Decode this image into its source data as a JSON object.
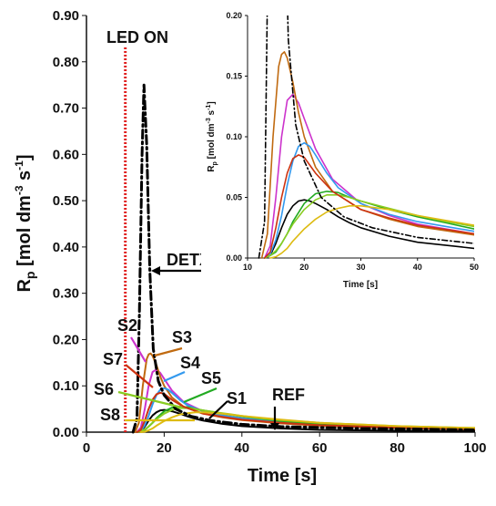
{
  "chart_data": [
    {
      "type": "line",
      "xlabel": "Time [s]",
      "ylabel": "R",
      "ylabel_sub": "p",
      "ylabel_units": "[mol dm",
      "ylabel_exp1": "-3",
      "ylabel_s": " s",
      "ylabel_exp2": "-1",
      "ylabel_close": "]",
      "xlim": [
        0,
        100
      ],
      "ylim": [
        0,
        0.9
      ],
      "xticks": [
        "0",
        "20",
        "40",
        "60",
        "80",
        "100"
      ],
      "yticks": [
        "0.00",
        "0.10",
        "0.20",
        "0.30",
        "0.40",
        "0.50",
        "0.60",
        "0.70",
        "0.80",
        "0.90"
      ],
      "led_label": "LED ON",
      "led_time": 10,
      "annotations": [
        "DETX",
        "S1",
        "S2",
        "S3",
        "S4",
        "S5",
        "S6",
        "S7",
        "S8",
        "REF"
      ],
      "series": [
        {
          "name": "DETX",
          "style": "dashdot",
          "color": "#000000",
          "x": [
            12,
            13,
            13.6,
            14.3,
            14.8,
            15.5,
            16.3,
            17.2,
            18.5,
            20,
            23,
            27,
            32,
            40,
            50,
            70,
            100
          ],
          "y": [
            0,
            0.03,
            0.25,
            0.6,
            0.75,
            0.62,
            0.35,
            0.18,
            0.11,
            0.08,
            0.05,
            0.034,
            0.025,
            0.017,
            0.012,
            0.008,
            0.005
          ]
        },
        {
          "name": "S1",
          "color": "#000000",
          "x": [
            13,
            14,
            15,
            16,
            17,
            18,
            19,
            20,
            21,
            22,
            24,
            26,
            28,
            30,
            35,
            40,
            50,
            60,
            80,
            100
          ],
          "y": [
            0,
            0.002,
            0.012,
            0.025,
            0.036,
            0.043,
            0.047,
            0.048,
            0.047,
            0.045,
            0.04,
            0.034,
            0.029,
            0.025,
            0.018,
            0.013,
            0.008,
            0.005,
            0.003,
            0.002
          ]
        },
        {
          "name": "S2",
          "color": "#cc33cc",
          "x": [
            13,
            14,
            15,
            16,
            17,
            18,
            19,
            20,
            22,
            25,
            30,
            35,
            40,
            50,
            60,
            80,
            100
          ],
          "y": [
            0,
            0.01,
            0.05,
            0.1,
            0.13,
            0.135,
            0.128,
            0.115,
            0.09,
            0.065,
            0.045,
            0.035,
            0.028,
            0.02,
            0.015,
            0.01,
            0.007
          ]
        },
        {
          "name": "S3",
          "color": "#c06a10",
          "x": [
            12.5,
            13.5,
            14.5,
            15.5,
            16,
            16.5,
            17,
            18,
            19,
            20,
            22,
            25,
            30,
            35,
            40,
            50,
            60,
            80,
            100
          ],
          "y": [
            0,
            0.02,
            0.1,
            0.158,
            0.168,
            0.17,
            0.165,
            0.145,
            0.12,
            0.1,
            0.075,
            0.055,
            0.04,
            0.032,
            0.026,
            0.019,
            0.014,
            0.009,
            0.006
          ]
        },
        {
          "name": "S4",
          "color": "#3399ee",
          "x": [
            13,
            14,
            15,
            16,
            17,
            18,
            19,
            20,
            21,
            22,
            24,
            26,
            30,
            35,
            40,
            50,
            60,
            80,
            100
          ],
          "y": [
            0,
            0.003,
            0.015,
            0.035,
            0.06,
            0.08,
            0.092,
            0.095,
            0.092,
            0.085,
            0.07,
            0.058,
            0.045,
            0.036,
            0.03,
            0.022,
            0.017,
            0.011,
            0.008
          ]
        },
        {
          "name": "S5",
          "color": "#22aa22",
          "x": [
            13,
            14,
            15,
            16,
            17,
            18,
            20,
            22,
            24,
            26,
            28,
            30,
            35,
            40,
            45,
            50,
            60,
            80,
            100
          ],
          "y": [
            0,
            0.002,
            0.005,
            0.012,
            0.02,
            0.03,
            0.045,
            0.053,
            0.055,
            0.054,
            0.05,
            0.047,
            0.04,
            0.034,
            0.029,
            0.024,
            0.018,
            0.011,
            0.008
          ]
        },
        {
          "name": "S6",
          "color": "#88cc22",
          "x": [
            13,
            14,
            15,
            16,
            17,
            18,
            20,
            22,
            24,
            26,
            28,
            30,
            35,
            40,
            45,
            50,
            60,
            80,
            100
          ],
          "y": [
            0,
            0.002,
            0.006,
            0.012,
            0.02,
            0.028,
            0.04,
            0.048,
            0.052,
            0.052,
            0.05,
            0.047,
            0.041,
            0.035,
            0.03,
            0.026,
            0.02,
            0.013,
            0.009
          ]
        },
        {
          "name": "S7",
          "color": "#cc3311",
          "x": [
            13,
            14,
            15,
            16,
            17,
            18,
            19,
            20,
            22,
            25,
            30,
            35,
            40,
            50,
            60,
            80,
            100
          ],
          "y": [
            0,
            0.005,
            0.025,
            0.05,
            0.07,
            0.082,
            0.085,
            0.083,
            0.07,
            0.055,
            0.04,
            0.033,
            0.027,
            0.02,
            0.015,
            0.01,
            0.007
          ]
        },
        {
          "name": "S8",
          "color": "#ddbb11",
          "x": [
            14,
            15,
            16,
            17,
            18,
            20,
            22,
            24,
            26,
            28,
            30,
            35,
            40,
            45,
            50,
            60,
            80,
            100
          ],
          "y": [
            0,
            0.001,
            0.004,
            0.008,
            0.014,
            0.024,
            0.032,
            0.038,
            0.041,
            0.043,
            0.043,
            0.04,
            0.035,
            0.031,
            0.027,
            0.02,
            0.013,
            0.009
          ]
        }
      ]
    },
    {
      "type": "line",
      "role": "inset",
      "xlabel": "Time [s]",
      "ylabel": "R",
      "ylabel_sub": "p",
      "ylabel_units": "[mol dm",
      "ylabel_exp1": "-3",
      "ylabel_s": " s",
      "ylabel_exp2": "-1",
      "ylabel_close": "]",
      "xlim": [
        10,
        50
      ],
      "ylim": [
        0,
        0.2
      ],
      "xticks": [
        "10",
        "20",
        "30",
        "40",
        "50"
      ],
      "yticks": [
        "0.00",
        "0.05",
        "0.10",
        "0.15",
        "0.20"
      ],
      "series_ref": "same as main chart"
    }
  ]
}
